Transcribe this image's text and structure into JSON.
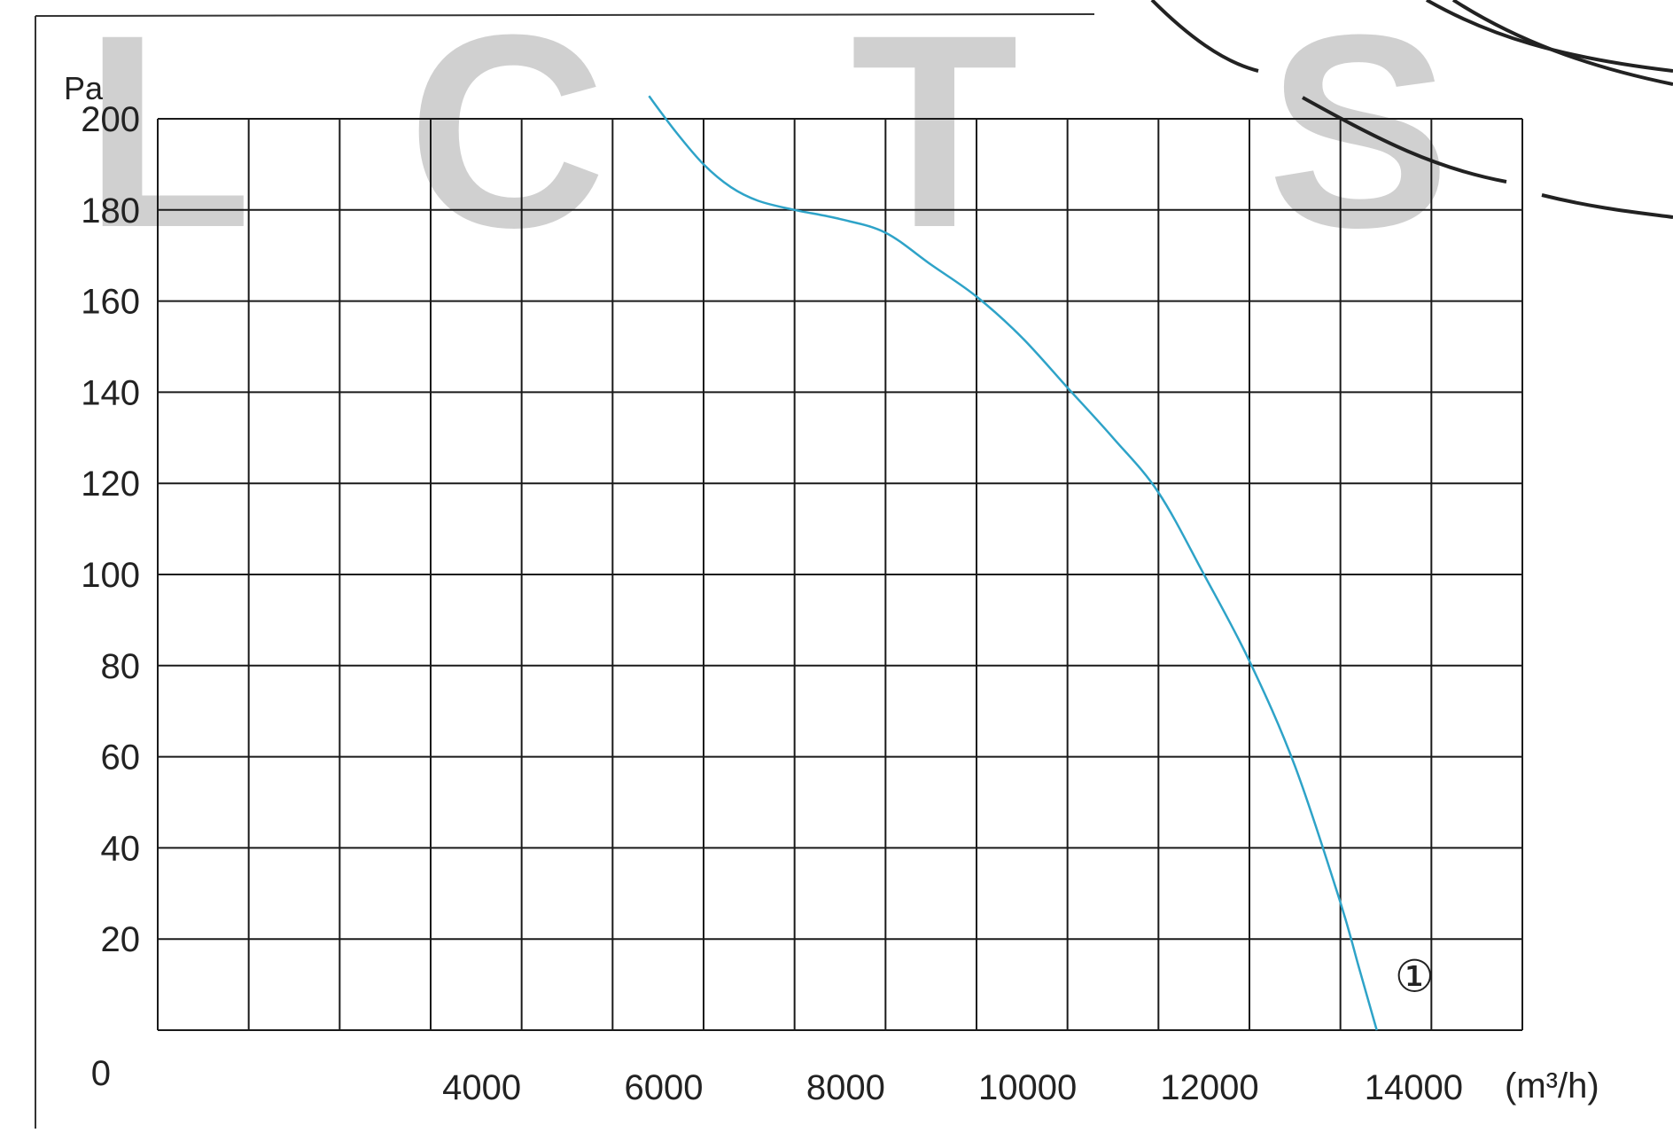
{
  "chart_data": {
    "type": "line",
    "title": "",
    "xlabel": "",
    "ylabel": "",
    "y_unit_label": "Pa",
    "x_unit_label": "(m³/h)",
    "xlim": [
      0,
      15000
    ],
    "ylim": [
      0,
      200
    ],
    "x_tick_labels": [
      {
        "x": 4000,
        "label": "4000"
      },
      {
        "x": 6000,
        "label": "6000"
      },
      {
        "x": 8000,
        "label": "8000"
      },
      {
        "x": 10000,
        "label": "10000"
      },
      {
        "x": 12000,
        "label": "12000"
      },
      {
        "x": 14000,
        "label": "14000"
      }
    ],
    "y_tick_labels": [
      {
        "y": 0,
        "label": "0"
      },
      {
        "y": 20,
        "label": "20"
      },
      {
        "y": 40,
        "label": "40"
      },
      {
        "y": 60,
        "label": "60"
      },
      {
        "y": 80,
        "label": "80"
      },
      {
        "y": 100,
        "label": "100"
      },
      {
        "y": 120,
        "label": "120"
      },
      {
        "y": 140,
        "label": "140"
      },
      {
        "y": 160,
        "label": "160"
      },
      {
        "y": 180,
        "label": "180"
      },
      {
        "y": 200,
        "label": "200"
      }
    ],
    "grid": true,
    "series": [
      {
        "name": "①",
        "color": "#2ea3c8",
        "x": [
          5400,
          5700,
          6000,
          6300,
          6600,
          7000,
          7500,
          8000,
          8500,
          9000,
          9500,
          10000,
          10500,
          11000,
          11500,
          12000,
          12500,
          13000,
          13200,
          13400
        ],
        "y": [
          205,
          197,
          190,
          185,
          182,
          180,
          178,
          175,
          168,
          161,
          152,
          141,
          130,
          118,
          100,
          81,
          58,
          28,
          14,
          0
        ]
      }
    ],
    "curve_label": {
      "text": "①",
      "x": 13500,
      "y": 12
    },
    "watermark": "LCTS"
  }
}
